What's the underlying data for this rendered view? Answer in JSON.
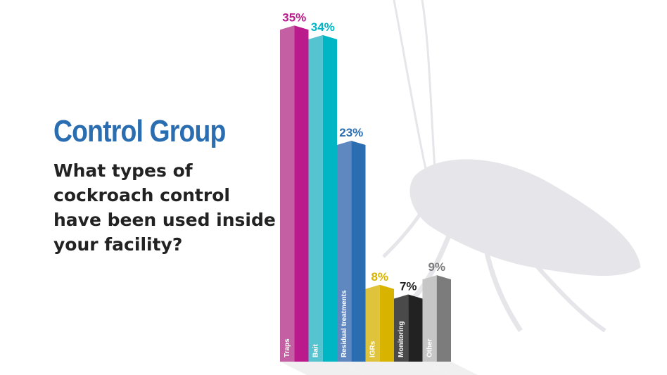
{
  "title": "Control Group",
  "question": "What types of cockroach control have been used inside your facility?",
  "chart_data": {
    "type": "bar",
    "categories": [
      "Traps",
      "Bait",
      "Residual treatments",
      "IGRs",
      "Monitoring",
      "Other"
    ],
    "values": [
      35,
      34,
      23,
      8,
      7,
      9
    ],
    "value_labels": [
      "35%",
      "34%",
      "23%",
      "8%",
      "7%",
      "9%"
    ],
    "colors": [
      {
        "light": "#c45fa4",
        "dark": "#bb1a8d"
      },
      {
        "light": "#55c4d0",
        "dark": "#00b5c4"
      },
      {
        "light": "#5f87c0",
        "dark": "#2a6db0"
      },
      {
        "light": "#dfc33c",
        "dark": "#d8b300"
      },
      {
        "light": "#4a4a4a",
        "dark": "#222222"
      },
      {
        "light": "#c6c6c6",
        "dark": "#7c7c7d"
      }
    ],
    "ylim": [
      0,
      37
    ],
    "grid": false
  },
  "background_icon": "cockroach-silhouette"
}
